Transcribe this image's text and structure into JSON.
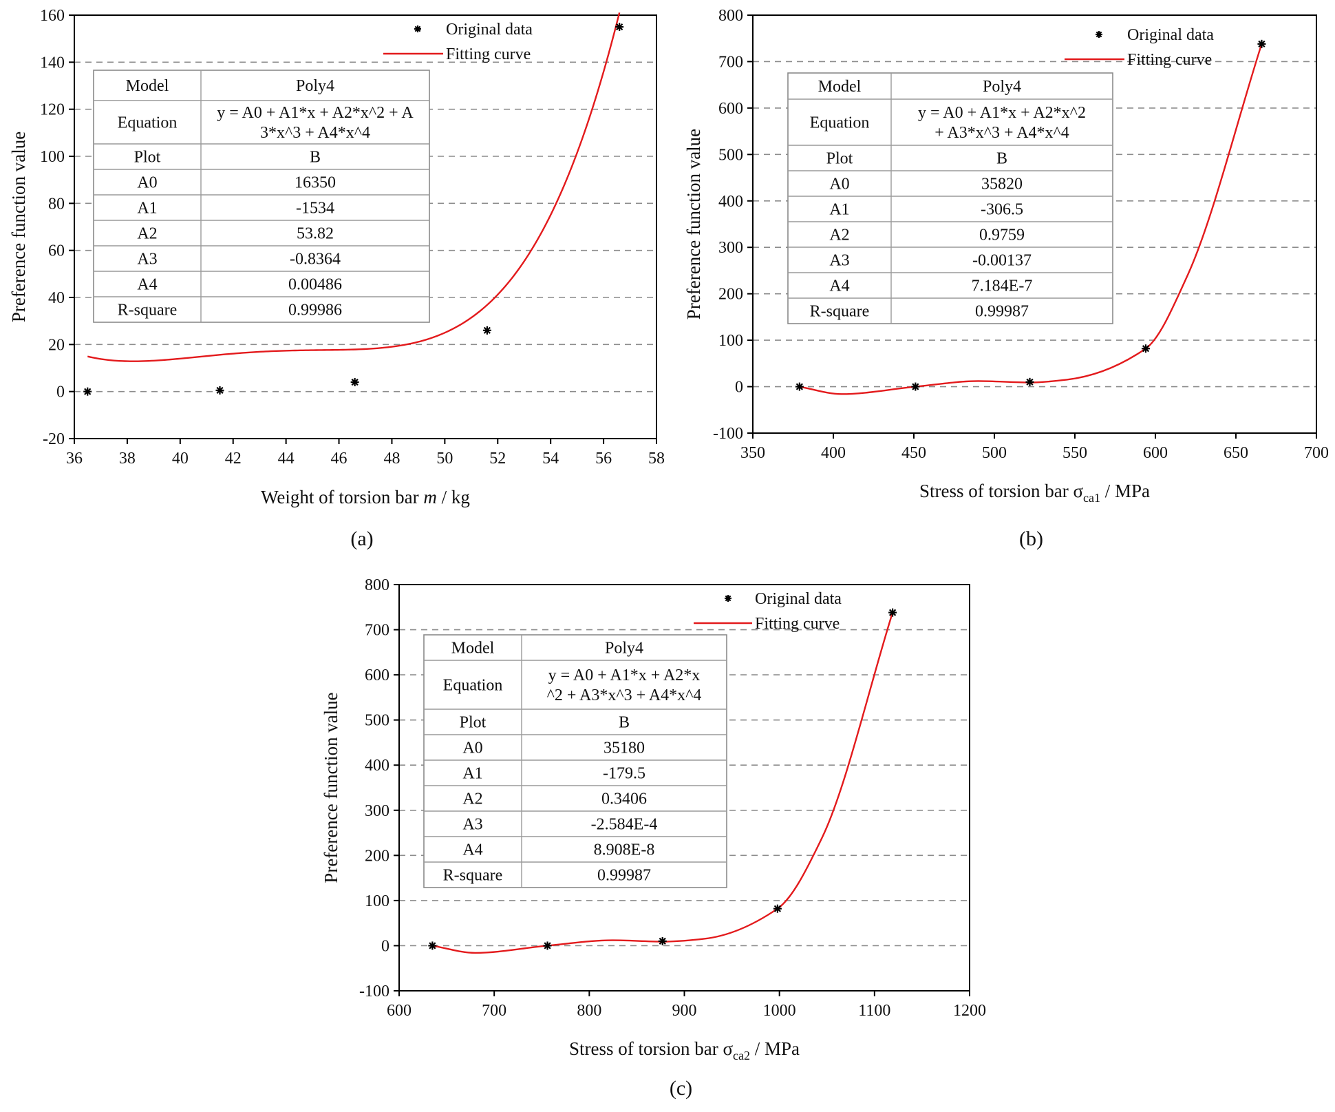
{
  "chart_data": [
    {
      "type": "scatter",
      "panel_label": "(a)",
      "xlabel_parts": [
        "Weight of torsion bar ",
        "m",
        " / kg"
      ],
      "ylabel": "Preference function value",
      "xlim": [
        36,
        58
      ],
      "ylim": [
        -20,
        160
      ],
      "xticks": [
        36,
        38,
        40,
        42,
        44,
        46,
        48,
        50,
        52,
        54,
        56,
        58
      ],
      "yticks": [
        -20,
        0,
        20,
        40,
        60,
        80,
        100,
        120,
        140,
        160
      ],
      "gridlines": [
        0,
        20,
        40,
        60,
        80,
        100,
        120,
        140
      ],
      "series": [
        {
          "name": "Original data",
          "marker": "asterisk",
          "x": [
            36.5,
            41.5,
            46.6,
            51.6,
            56.6
          ],
          "y": [
            0,
            0.5,
            4,
            26,
            155
          ]
        },
        {
          "name": "Fitting curve",
          "line": "red"
        }
      ],
      "fit": {
        "coefficients": [
          16350,
          -1534,
          53.82,
          -0.8364,
          0.00486
        ],
        "x_range": [
          36.5,
          56.6
        ]
      },
      "legend_position": "top-right",
      "fit_table": [
        {
          "label": "Model",
          "value": [
            "Poly4"
          ]
        },
        {
          "label": "Equation",
          "value": [
            "y = A0 + A1*x + A2*x^2 + A",
            "3*x^3 + A4*x^4"
          ]
        },
        {
          "label": "Plot",
          "value": [
            "B"
          ]
        },
        {
          "label": "A0",
          "value": [
            "16350"
          ]
        },
        {
          "label": "A1",
          "value": [
            "-1534"
          ]
        },
        {
          "label": "A2",
          "value": [
            "53.82"
          ]
        },
        {
          "label": "A3",
          "value": [
            "-0.8364"
          ]
        },
        {
          "label": "A4",
          "value": [
            "0.00486"
          ]
        },
        {
          "label": "R-square",
          "value": [
            "0.99986"
          ]
        }
      ]
    },
    {
      "type": "scatter",
      "panel_label": "(b)",
      "xlabel_parts": [
        "Stress of torsion bar σ",
        "ca1",
        " / MPa"
      ],
      "ylabel": "Preference function value",
      "xlim": [
        350,
        700
      ],
      "ylim": [
        -100,
        800
      ],
      "xticks": [
        350,
        400,
        450,
        500,
        550,
        600,
        650,
        700
      ],
      "yticks": [
        -100,
        0,
        100,
        200,
        300,
        400,
        500,
        600,
        700,
        800
      ],
      "gridlines": [
        0,
        100,
        200,
        300,
        400,
        500,
        600,
        700
      ],
      "series": [
        {
          "name": "Original data",
          "marker": "asterisk",
          "x": [
            379,
            451,
            522,
            594,
            666
          ],
          "y": [
            0,
            0,
            10,
            82,
            738
          ]
        },
        {
          "name": "Fitting curve",
          "line": "red"
        }
      ],
      "fit": {
        "knots_x": [
          379,
          405,
          451,
          490,
          522,
          545,
          594,
          620,
          666
        ],
        "knots_y": [
          0,
          -16,
          0,
          12,
          9,
          15,
          82,
          240,
          738
        ]
      },
      "legend_position": "top-right",
      "fit_table": [
        {
          "label": "Model",
          "value": [
            "Poly4"
          ]
        },
        {
          "label": "Equation",
          "value": [
            "y = A0 + A1*x + A2*x^2",
            "+ A3*x^3 + A4*x^4"
          ]
        },
        {
          "label": "Plot",
          "value": [
            "B"
          ]
        },
        {
          "label": "A0",
          "value": [
            "35820"
          ]
        },
        {
          "label": "A1",
          "value": [
            "-306.5"
          ]
        },
        {
          "label": "A2",
          "value": [
            "0.9759"
          ]
        },
        {
          "label": "A3",
          "value": [
            "-0.00137"
          ]
        },
        {
          "label": "A4",
          "value": [
            "7.184E-7"
          ]
        },
        {
          "label": "R-square",
          "value": [
            "0.99987"
          ]
        }
      ]
    },
    {
      "type": "scatter",
      "panel_label": "(c)",
      "xlabel_parts": [
        "Stress of torsion bar σ",
        "ca2",
        " / MPa"
      ],
      "ylabel": "Preference function value",
      "xlim": [
        600,
        1200
      ],
      "ylim": [
        -100,
        800
      ],
      "xticks": [
        600,
        700,
        800,
        900,
        1000,
        1100,
        1200
      ],
      "yticks": [
        -100,
        0,
        100,
        200,
        300,
        400,
        500,
        600,
        700,
        800
      ],
      "gridlines": [
        0,
        100,
        200,
        300,
        400,
        500,
        600,
        700
      ],
      "series": [
        {
          "name": "Original data",
          "marker": "asterisk",
          "x": [
            635,
            756,
            877,
            998,
            1119
          ],
          "y": [
            0,
            0,
            10,
            82,
            738
          ]
        },
        {
          "name": "Fitting curve",
          "line": "red"
        }
      ],
      "fit": {
        "knots_x": [
          635,
          680,
          756,
          825,
          877,
          920,
          998,
          1045,
          1119
        ],
        "knots_y": [
          0,
          -16,
          0,
          12,
          9,
          15,
          82,
          240,
          738
        ]
      },
      "legend_position": "top-right",
      "fit_table": [
        {
          "label": "Model",
          "value": [
            "Poly4"
          ]
        },
        {
          "label": "Equation",
          "value": [
            "y = A0 + A1*x + A2*x",
            "^2 + A3*x^3 + A4*x^4"
          ]
        },
        {
          "label": "Plot",
          "value": [
            "B"
          ]
        },
        {
          "label": "A0",
          "value": [
            "35180"
          ]
        },
        {
          "label": "A1",
          "value": [
            "-179.5"
          ]
        },
        {
          "label": "A2",
          "value": [
            "0.3406"
          ]
        },
        {
          "label": "A3",
          "value": [
            "-2.584E-4"
          ]
        },
        {
          "label": "A4",
          "value": [
            "8.908E-8"
          ]
        },
        {
          "label": "R-square",
          "value": [
            "0.99987"
          ]
        }
      ]
    }
  ]
}
